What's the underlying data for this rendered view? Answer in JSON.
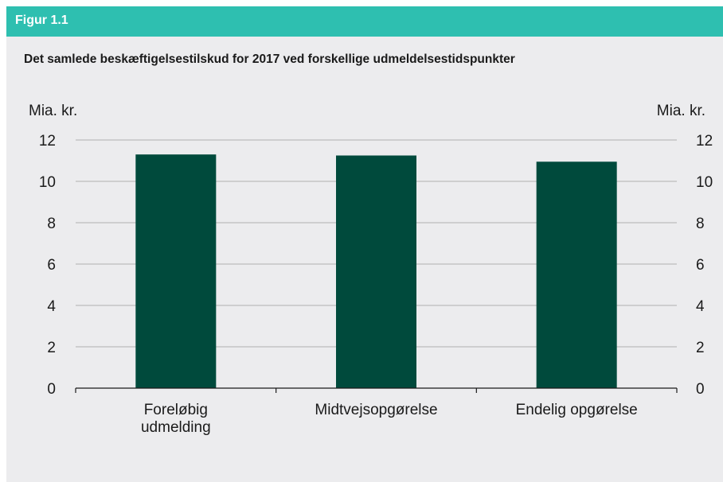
{
  "figure": {
    "label": "Figur 1.1",
    "colors": {
      "header": "#2ebfb0",
      "background": "#ececee",
      "bar": "#004a3c",
      "gridline": "#b0b0b0"
    }
  },
  "chart_data": {
    "type": "bar",
    "title": "Det samlede beskæftigelsestilskud for 2017 ved forskellige udmeldelsestidspunkter",
    "ylabel_left": "Mia. kr.",
    "ylabel_right": "Mia. kr.",
    "xlabel": "",
    "categories": [
      [
        "Foreløbig",
        "udmelding"
      ],
      [
        "Midtvejsopgørelse"
      ],
      [
        "Endelig opgørelse"
      ]
    ],
    "values": [
      11.3,
      11.25,
      10.95
    ],
    "ylim": [
      0,
      12
    ],
    "yticks": [
      "0",
      "2",
      "4",
      "6",
      "8",
      "10",
      "12"
    ],
    "grid": true,
    "legend": "none"
  }
}
